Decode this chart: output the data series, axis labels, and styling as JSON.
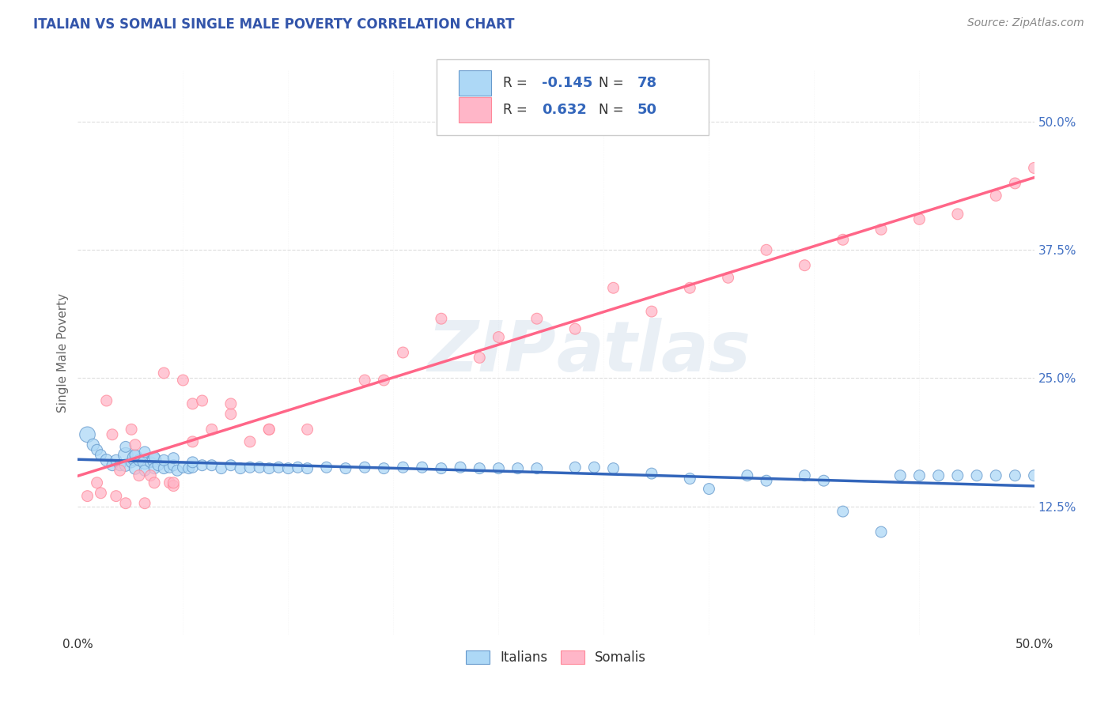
{
  "title": "ITALIAN VS SOMALI SINGLE MALE POVERTY CORRELATION CHART",
  "source": "Source: ZipAtlas.com",
  "ylabel": "Single Male Poverty",
  "xlim": [
    0.0,
    0.5
  ],
  "ylim": [
    0.0,
    0.55
  ],
  "xtick_labels": [
    "0.0%",
    "",
    "",
    "",
    "",
    "",
    "",
    "",
    "",
    "50.0%"
  ],
  "xtick_positions": [
    0.0,
    0.055,
    0.11,
    0.165,
    0.22,
    0.275,
    0.33,
    0.385,
    0.44,
    0.5
  ],
  "ytick_labels": [
    "12.5%",
    "25.0%",
    "37.5%",
    "50.0%"
  ],
  "ytick_positions": [
    0.125,
    0.25,
    0.375,
    0.5
  ],
  "italian_color": "#ADD8F6",
  "somali_color": "#FFB6C8",
  "italian_edge_color": "#6699CC",
  "somali_edge_color": "#FF8899",
  "italian_line_color": "#3366BB",
  "somali_line_color": "#FF6688",
  "R_italian": -0.145,
  "N_italian": 78,
  "R_somali": 0.632,
  "N_somali": 50,
  "watermark_zip": "ZIP",
  "watermark_atlas": "atlas",
  "background_color": "#FFFFFF",
  "grid_color": "#DDDDDD",
  "title_color": "#3355AA",
  "source_color": "#888888",
  "italian_scatter_x": [
    0.005,
    0.008,
    0.01,
    0.012,
    0.015,
    0.018,
    0.02,
    0.022,
    0.025,
    0.025,
    0.028,
    0.03,
    0.03,
    0.032,
    0.035,
    0.035,
    0.038,
    0.04,
    0.04,
    0.042,
    0.045,
    0.048,
    0.05,
    0.052,
    0.055,
    0.058,
    0.06,
    0.065,
    0.07,
    0.075,
    0.08,
    0.085,
    0.09,
    0.095,
    0.1,
    0.105,
    0.11,
    0.115,
    0.12,
    0.13,
    0.14,
    0.15,
    0.16,
    0.17,
    0.18,
    0.19,
    0.2,
    0.21,
    0.22,
    0.23,
    0.24,
    0.26,
    0.27,
    0.28,
    0.3,
    0.32,
    0.33,
    0.35,
    0.36,
    0.38,
    0.39,
    0.4,
    0.42,
    0.43,
    0.44,
    0.45,
    0.46,
    0.47,
    0.48,
    0.49,
    0.5,
    0.025,
    0.03,
    0.035,
    0.04,
    0.045,
    0.05,
    0.06
  ],
  "italian_scatter_y": [
    0.195,
    0.185,
    0.18,
    0.175,
    0.17,
    0.165,
    0.17,
    0.165,
    0.175,
    0.165,
    0.168,
    0.172,
    0.162,
    0.17,
    0.168,
    0.16,
    0.168,
    0.17,
    0.162,
    0.165,
    0.162,
    0.163,
    0.165,
    0.16,
    0.163,
    0.162,
    0.163,
    0.165,
    0.165,
    0.162,
    0.165,
    0.162,
    0.163,
    0.163,
    0.162,
    0.163,
    0.162,
    0.163,
    0.162,
    0.163,
    0.162,
    0.163,
    0.162,
    0.163,
    0.163,
    0.162,
    0.163,
    0.162,
    0.162,
    0.162,
    0.162,
    0.163,
    0.163,
    0.162,
    0.157,
    0.152,
    0.142,
    0.155,
    0.15,
    0.155,
    0.15,
    0.12,
    0.1,
    0.155,
    0.155,
    0.155,
    0.155,
    0.155,
    0.155,
    0.155,
    0.155,
    0.183,
    0.175,
    0.178,
    0.173,
    0.17,
    0.172,
    0.168
  ],
  "italian_scatter_size": [
    200,
    120,
    100,
    100,
    120,
    100,
    100,
    100,
    180,
    120,
    100,
    200,
    120,
    100,
    160,
    100,
    100,
    160,
    100,
    100,
    100,
    100,
    100,
    100,
    100,
    100,
    100,
    100,
    100,
    100,
    100,
    100,
    100,
    100,
    100,
    100,
    100,
    100,
    100,
    100,
    100,
    100,
    100,
    100,
    100,
    100,
    100,
    100,
    100,
    100,
    100,
    100,
    100,
    100,
    100,
    100,
    100,
    100,
    100,
    100,
    100,
    100,
    100,
    100,
    100,
    100,
    100,
    100,
    100,
    100,
    100,
    100,
    100,
    100,
    100,
    100,
    100,
    100
  ],
  "somali_scatter_x": [
    0.005,
    0.01,
    0.012,
    0.015,
    0.018,
    0.02,
    0.022,
    0.025,
    0.028,
    0.03,
    0.032,
    0.035,
    0.038,
    0.04,
    0.045,
    0.048,
    0.05,
    0.055,
    0.06,
    0.065,
    0.07,
    0.08,
    0.09,
    0.1,
    0.05,
    0.06,
    0.08,
    0.1,
    0.12,
    0.15,
    0.16,
    0.17,
    0.19,
    0.21,
    0.22,
    0.24,
    0.26,
    0.28,
    0.3,
    0.32,
    0.34,
    0.36,
    0.38,
    0.4,
    0.42,
    0.44,
    0.46,
    0.48,
    0.49,
    0.5
  ],
  "somali_scatter_y": [
    0.135,
    0.148,
    0.138,
    0.228,
    0.195,
    0.135,
    0.16,
    0.128,
    0.2,
    0.185,
    0.155,
    0.128,
    0.155,
    0.148,
    0.255,
    0.148,
    0.145,
    0.248,
    0.225,
    0.228,
    0.2,
    0.215,
    0.188,
    0.2,
    0.148,
    0.188,
    0.225,
    0.2,
    0.2,
    0.248,
    0.248,
    0.275,
    0.308,
    0.27,
    0.29,
    0.308,
    0.298,
    0.338,
    0.315,
    0.338,
    0.348,
    0.375,
    0.36,
    0.385,
    0.395,
    0.405,
    0.41,
    0.428,
    0.44,
    0.455
  ],
  "somali_scatter_size": [
    100,
    100,
    100,
    100,
    100,
    100,
    100,
    100,
    100,
    100,
    100,
    100,
    100,
    100,
    100,
    100,
    100,
    100,
    100,
    100,
    100,
    100,
    100,
    100,
    100,
    100,
    100,
    100,
    100,
    100,
    100,
    100,
    100,
    100,
    100,
    100,
    100,
    100,
    100,
    100,
    100,
    100,
    100,
    100,
    100,
    100,
    100,
    100,
    100,
    100
  ]
}
